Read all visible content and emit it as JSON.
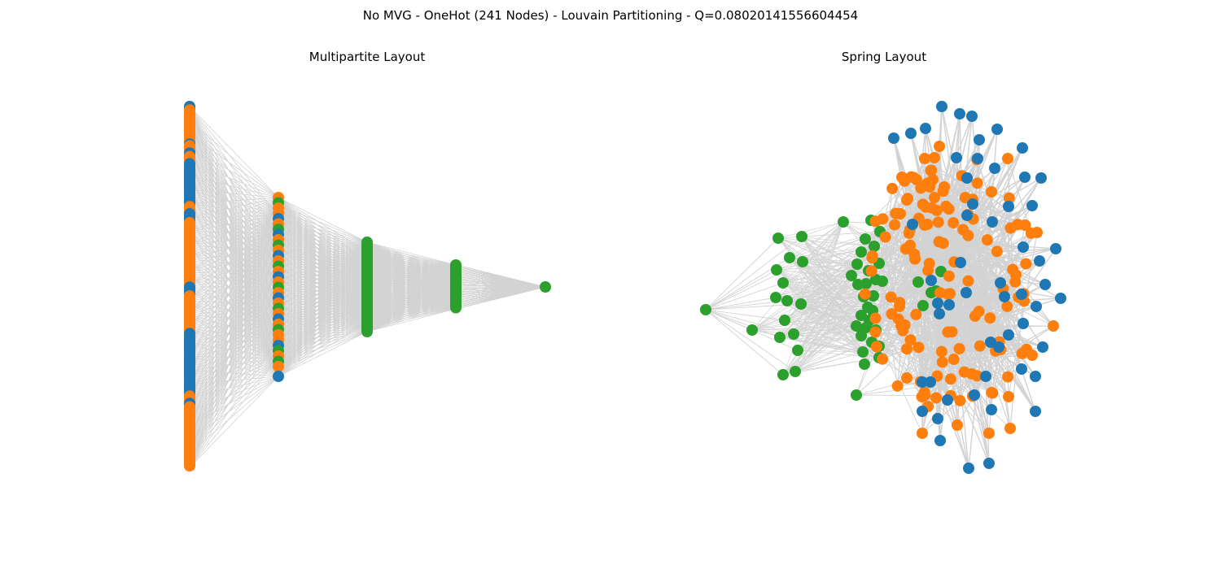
{
  "figure": {
    "title": "No MVG - OneHot (241 Nodes) - Louvain Partitioning - Q=0.08020141556604454"
  },
  "panels": [
    {
      "title": "Multipartite Layout",
      "layout": "multipartite"
    },
    {
      "title": "Spring Layout",
      "layout": "spring"
    }
  ],
  "chart_data": {
    "type": "network",
    "node_count": 241,
    "partitioning": "Louvain",
    "modularity": 0.08020141556604454,
    "communities": [
      {
        "color": "#1f77b4"
      },
      {
        "color": "#ff7f0e"
      },
      {
        "color": "#2ca02c"
      }
    ],
    "edge_color": "#d3d3d3",
    "layers": [
      {
        "layer": 0,
        "community_sequence": "mixed-blue-orange"
      },
      {
        "layer": 1,
        "community_sequence": "mixed-all"
      },
      {
        "layer": 2,
        "community_sequence": "green"
      },
      {
        "layer": 3,
        "community_sequence": "green"
      },
      {
        "layer": 4,
        "community_sequence": "green"
      }
    ]
  }
}
